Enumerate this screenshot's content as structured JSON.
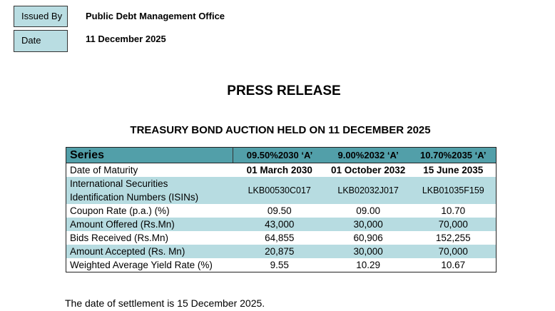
{
  "header": {
    "issued_by_label": "Issued By",
    "issued_by_value": "Public Debt Management Office",
    "date_label": "Date",
    "date_value": "11 December 2025"
  },
  "title": "PRESS RELEASE",
  "subtitle": "TREASURY BOND AUCTION HELD ON 11 DECEMBER 2025",
  "table": {
    "columns": [
      "Series",
      "09.50%2030 ‘A’",
      "9.00%2032 ‘A’",
      "10.70%2035 ‘A’"
    ],
    "rows": [
      {
        "label": "Date of Maturity",
        "values": [
          "01 March 2030",
          "01 October 2032",
          "15 June 2035"
        ]
      },
      {
        "label_lines": [
          "International Securities",
          "Identification Numbers (ISINs)"
        ],
        "values": [
          "LKB00530C017",
          "LKB02032J017",
          "LKB01035F159"
        ]
      },
      {
        "label": "Coupon Rate (p.a.) (%)",
        "values": [
          "09.50",
          "09.00",
          "10.70"
        ]
      },
      {
        "label": "Amount Offered (Rs.Mn)",
        "values": [
          "43,000",
          "30,000",
          "70,000"
        ]
      },
      {
        "label": "Bids Received (Rs.Mn)",
        "values": [
          "64,855",
          "60,906",
          "152,255"
        ]
      },
      {
        "label": "Amount Accepted (Rs. Mn)",
        "values": [
          "20,875",
          "30,000",
          "70,000"
        ]
      },
      {
        "label": "Weighted Average Yield Rate (%)",
        "values": [
          "9.55",
          "10.29",
          "10.67"
        ]
      }
    ]
  },
  "footer": "The date of settlement is 15 December 2025.",
  "colors": {
    "header_teal": "#529fa9",
    "row_light": "#b7dce1"
  }
}
